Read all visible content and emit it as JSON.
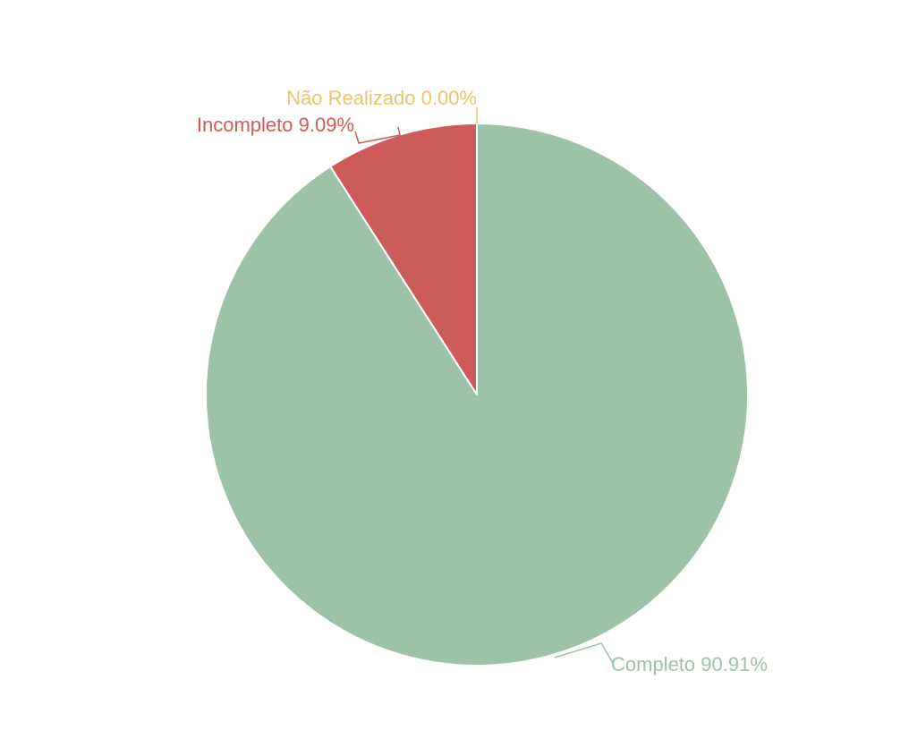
{
  "chart_data": {
    "type": "pie",
    "title": "",
    "slices": [
      {
        "label": "Completo",
        "value": 90.91,
        "display": "Completo 90.91%",
        "color": "#9cc3a8"
      },
      {
        "label": "Incompleto",
        "value": 9.09,
        "display": "Incompleto 9.09%",
        "color": "#cb5c59"
      },
      {
        "label": "Não Realizado",
        "value": 0.0,
        "display": "Não Realizado 0.00%",
        "color": "#e9c46a"
      }
    ],
    "legend": "none",
    "start_angle_deg": 0,
    "direction": "counterclockwise-from-top"
  }
}
